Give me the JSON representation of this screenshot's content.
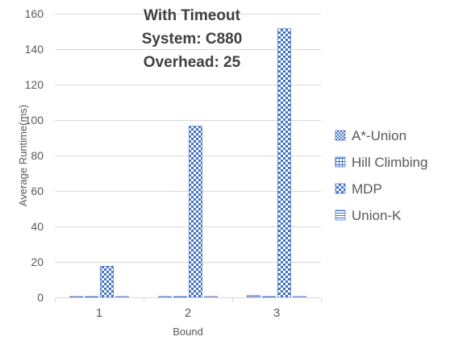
{
  "chart_data": {
    "type": "bar",
    "title_lines": [
      "With Timeout",
      "System: C880",
      "Overhead: 25"
    ],
    "xlabel": "Bound",
    "ylabel": "Average Runtime(ms)",
    "categories": [
      "1",
      "2",
      "3"
    ],
    "ylim": [
      0,
      160
    ],
    "yticks": [
      0,
      20,
      40,
      60,
      80,
      100,
      120,
      140,
      160
    ],
    "grid": true,
    "legend_position": "right",
    "series": [
      {
        "name": "A*-Union",
        "values": [
          0.3,
          0.4,
          1.0
        ],
        "pattern": "small-checker",
        "color": "#4472c4"
      },
      {
        "name": "Hill Climbing",
        "values": [
          0.3,
          0.3,
          0.4
        ],
        "pattern": "grid",
        "color": "#4472c4"
      },
      {
        "name": "MDP",
        "values": [
          17.5,
          96.5,
          151.5
        ],
        "pattern": "large-checker",
        "color": "#4472c4"
      },
      {
        "name": "Union-K",
        "values": [
          0.2,
          0.2,
          0.2
        ],
        "pattern": "horizontal-lines",
        "color": "#4472c4"
      }
    ],
    "colors": {
      "axis": "#d9d9d9",
      "grid": "#d9d9d9",
      "text": "#595959",
      "title": "#404040",
      "series_fg": "#4472c4",
      "series_bg": "#ffffff"
    }
  }
}
